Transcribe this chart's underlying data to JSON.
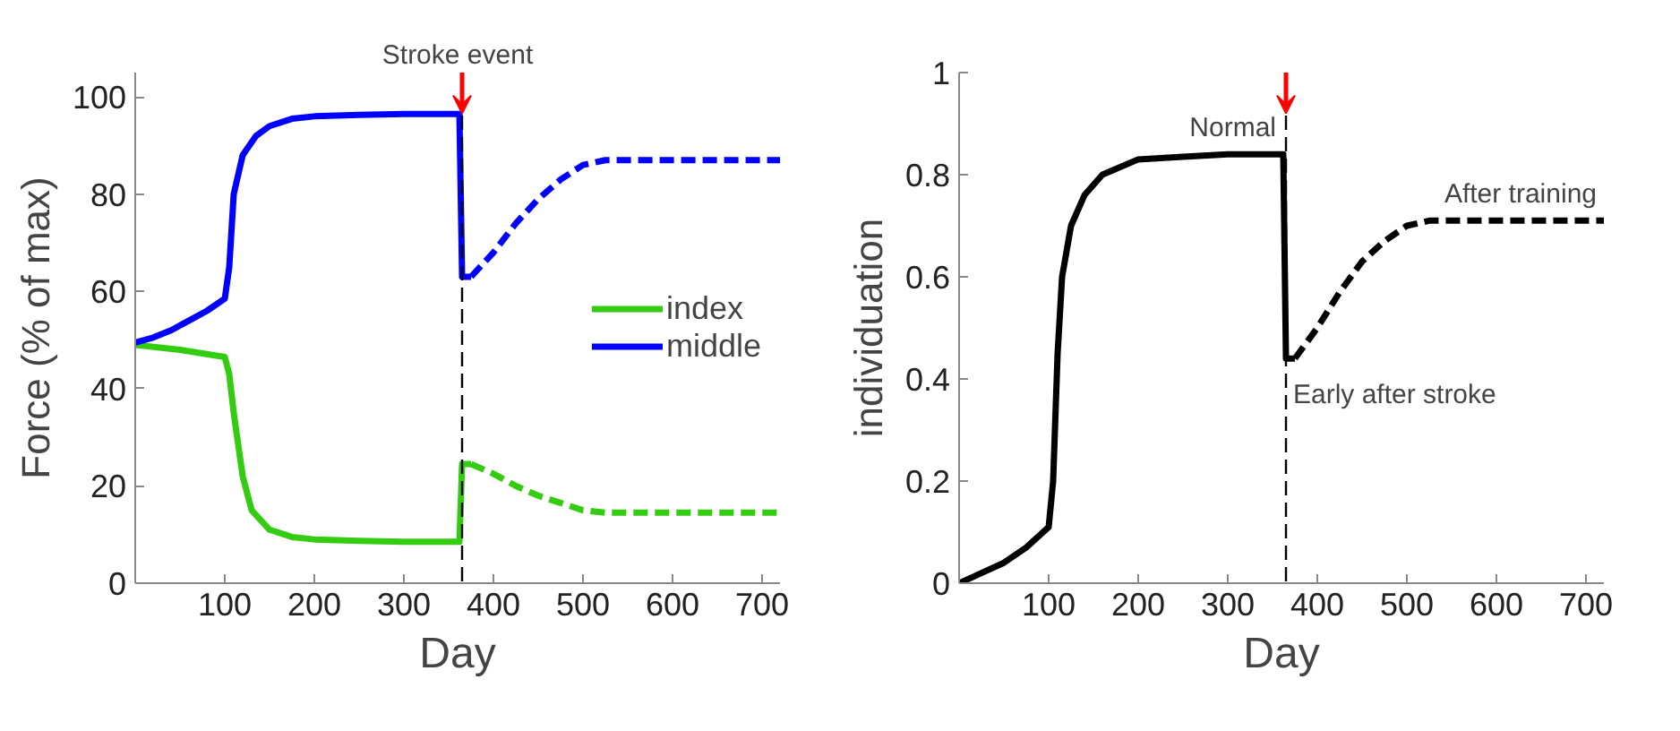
{
  "chart_data": [
    {
      "type": "line",
      "xlabel": "Day",
      "ylabel": "Force (% of max)",
      "xlim": [
        0,
        720
      ],
      "ylim": [
        0,
        105
      ],
      "xticks": [
        100,
        200,
        300,
        400,
        500,
        600,
        700
      ],
      "yticks": [
        0,
        20,
        40,
        60,
        80,
        100
      ],
      "grid": false,
      "legend": "right",
      "marker": "none",
      "series": [
        {
          "name": "index",
          "color": "#33cc11",
          "line_style": "solid",
          "x": [
            0,
            50,
            100,
            105,
            110,
            120,
            130,
            150,
            175,
            200,
            250,
            300,
            362,
            365,
            375
          ],
          "values": [
            49,
            48,
            46.5,
            43,
            35,
            22,
            15,
            11,
            9.5,
            9,
            8.7,
            8.5,
            8.5,
            24.5,
            24.5
          ]
        },
        {
          "name": "middle",
          "color": "#0000ff",
          "line_style": "solid",
          "x": [
            0,
            20,
            40,
            60,
            80,
            100,
            105,
            110,
            120,
            135,
            150,
            175,
            200,
            250,
            300,
            362,
            365,
            375
          ],
          "values": [
            49.5,
            50.5,
            52,
            54,
            56,
            58.5,
            65,
            80,
            88,
            92,
            94,
            95.5,
            96,
            96.3,
            96.5,
            96.5,
            63,
            63
          ]
        },
        {
          "color": "#33cc11",
          "line_style": "dashed",
          "x": [
            375,
            400,
            425,
            450,
            475,
            500,
            525,
            600,
            720
          ],
          "values": [
            24.5,
            22.5,
            20,
            18,
            16.5,
            15,
            14.5,
            14.5,
            14.5
          ]
        },
        {
          "color": "#0000ff",
          "line_style": "dashed",
          "x": [
            375,
            400,
            425,
            450,
            475,
            500,
            525,
            600,
            720
          ],
          "values": [
            63,
            68,
            74,
            79,
            83,
            86,
            87,
            87,
            87
          ]
        }
      ],
      "ref_lines": [
        {
          "axis": "x",
          "value": 365,
          "label": "Stroke event",
          "color": "#000000",
          "line_style": "dashed"
        }
      ]
    },
    {
      "type": "line",
      "xlabel": "Day",
      "ylabel": "individuation",
      "xlim": [
        0,
        720
      ],
      "ylim": [
        0,
        1
      ],
      "xticks": [
        100,
        200,
        300,
        400,
        500,
        600,
        700
      ],
      "yticks": [
        0,
        0.2,
        0.4,
        0.6,
        0.8,
        1
      ],
      "grid": false,
      "legend": false,
      "marker": "none",
      "series": [
        {
          "color": "#000000",
          "line_style": "solid",
          "x": [
            0,
            25,
            50,
            75,
            100,
            105,
            110,
            115,
            125,
            140,
            160,
            200,
            250,
            300,
            362,
            365,
            375
          ],
          "values": [
            0,
            0.02,
            0.04,
            0.07,
            0.11,
            0.2,
            0.45,
            0.6,
            0.7,
            0.76,
            0.8,
            0.83,
            0.835,
            0.84,
            0.84,
            0.44,
            0.44
          ]
        },
        {
          "color": "#000000",
          "line_style": "dashed",
          "x": [
            375,
            400,
            425,
            450,
            475,
            500,
            525,
            600,
            720
          ],
          "values": [
            0.44,
            0.5,
            0.57,
            0.63,
            0.67,
            0.7,
            0.71,
            0.71,
            0.71
          ]
        }
      ],
      "ref_lines": [
        {
          "axis": "x",
          "value": 365,
          "color": "#000000",
          "line_style": "dashed"
        }
      ],
      "annotations": [
        {
          "text": "Normal",
          "x": 362,
          "y": 0.84
        },
        {
          "text": "Early after stroke",
          "x": 365,
          "y": 0.44
        },
        {
          "text": "After training",
          "x": 720,
          "y": 0.71
        }
      ]
    }
  ]
}
